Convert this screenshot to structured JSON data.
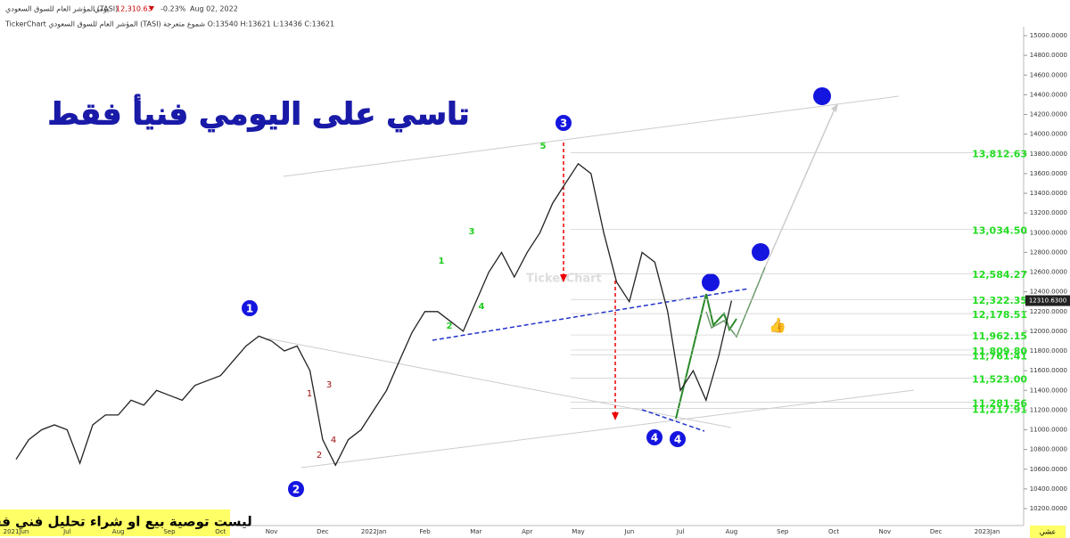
{
  "header": {
    "symbol": "المؤشر العام للسوق السعودي (TASI)",
    "period": "يومي",
    "price": "12,310.63",
    "change": "-0.23%",
    "date": "Aug 02, 2022",
    "info": "TickerChart المؤشر العام للسوق السعودي (TASI) شموع متعرجة O:13540 H:13621 L:13436 C:13621"
  },
  "chart_data": {
    "type": "line",
    "title": "تاسي على اليومي فنيأ فقط",
    "note": "ليست توصية بيع او شراء تحليل فني فقط",
    "watermark": "TickerChart",
    "corner_label": "عشي",
    "categories": [
      "2021Jun",
      null,
      null,
      null,
      "Jul",
      null,
      null,
      null,
      "Aug",
      null,
      null,
      null,
      "Sep",
      null,
      null,
      null,
      "Oct",
      null,
      null,
      null,
      "Nov",
      null,
      null,
      null,
      "Dec",
      null,
      null,
      null,
      "2022Jan",
      null,
      null,
      null,
      "Feb",
      null,
      null,
      null,
      "Mar",
      null,
      null,
      null,
      "Apr",
      null,
      null,
      null,
      "May",
      null,
      null,
      null,
      "Jun",
      null,
      null,
      null,
      "Jul",
      null,
      null,
      null,
      "Aug",
      null,
      null,
      null,
      "Sep",
      null,
      null,
      null,
      "Oct",
      null,
      null,
      null,
      "Nov",
      null,
      null,
      null,
      "Dec",
      null,
      null,
      null,
      "2023Jan"
    ],
    "series": [
      {
        "name": "TASI",
        "color": "#222222",
        "values": [
          10700,
          10900,
          11000,
          11050,
          11000,
          10660,
          11050,
          11150,
          11150,
          11300,
          11250,
          11400,
          11350,
          11300,
          11450,
          11500,
          11550,
          11700,
          11850,
          11950,
          11900,
          11800,
          11850,
          11600,
          10900,
          10640,
          10900,
          11000,
          11200,
          11400,
          11700,
          11990,
          12200,
          12200,
          12100,
          12000,
          12300,
          12600,
          12800,
          12550,
          12800,
          13000,
          13300,
          13500,
          13700,
          13600,
          13000,
          12500,
          12300,
          12800,
          12700,
          12200,
          11400,
          11600,
          11300,
          11750,
          12310.63,
          null,
          null,
          null,
          null,
          null,
          null,
          null,
          null,
          null,
          null,
          null,
          null,
          null,
          null,
          null,
          null,
          null,
          null,
          null,
          null
        ]
      }
    ],
    "ylim": [
      10100,
      15100
    ],
    "yticks": [
      {
        "value": 10200,
        "label": "10200.0000"
      },
      {
        "value": 10400,
        "label": "10400.0000"
      },
      {
        "value": 10600,
        "label": "10600.0000"
      },
      {
        "value": 10800,
        "label": "10800.0000"
      },
      {
        "value": 11000,
        "label": "11000.0000"
      },
      {
        "value": 11200,
        "label": "11200.0000"
      },
      {
        "value": 11400,
        "label": "11400.0000"
      },
      {
        "value": 11600,
        "label": "11600.0000"
      },
      {
        "value": 11800,
        "label": "11800.0000"
      },
      {
        "value": 12000,
        "label": "12000.0000"
      },
      {
        "value": 12200,
        "label": "12200.0000"
      },
      {
        "value": 12400,
        "label": "12400.0000"
      },
      {
        "value": 12600,
        "label": "12600.0000"
      },
      {
        "value": 12800,
        "label": "12800.0000"
      },
      {
        "value": 13000,
        "label": "13000.0000"
      },
      {
        "value": 13200,
        "label": "13200.0000"
      },
      {
        "value": 13400,
        "label": "13400.0000"
      },
      {
        "value": 13600,
        "label": "13600.0000"
      },
      {
        "value": 13800,
        "label": "13800.0000"
      },
      {
        "value": 14000,
        "label": "14000.0000"
      },
      {
        "value": 14200,
        "label": "14200.0000"
      },
      {
        "value": 14400,
        "label": "14400.0000"
      },
      {
        "value": 14600,
        "label": "14600.0000"
      },
      {
        "value": 14800,
        "label": "14800.0000"
      },
      {
        "value": 15000,
        "label": "15000.0000"
      }
    ],
    "last_price": {
      "value": 12310.63,
      "label": "12310.6300"
    },
    "levels": [
      {
        "value": 13812.63,
        "label": "13,812.63"
      },
      {
        "value": 13034.5,
        "label": "13,034.50"
      },
      {
        "value": 12584.27,
        "label": "12,584.27"
      },
      {
        "value": 12322.35,
        "label": "12,322.35"
      },
      {
        "value": 12178.51,
        "label": "12,178.51"
      },
      {
        "value": 11962.15,
        "label": "11,962.15"
      },
      {
        "value": 11809.8,
        "label": "11,809.80"
      },
      {
        "value": 11761.41,
        "label": "11,761.41"
      },
      {
        "value": 11523,
        "label": "11,523.00"
      },
      {
        "value": 11281.56,
        "label": "11,281.56"
      },
      {
        "value": 11217.91,
        "label": "11,217.91"
      }
    ],
    "level_color": "#22dd22",
    "wave_labels_major": [
      "1",
      "2",
      "3",
      "4",
      "4"
    ],
    "wave_labels_red": [
      "1",
      "3",
      "2",
      "4"
    ],
    "wave_labels_green": [
      "1",
      "3",
      "4",
      "2",
      "5"
    ]
  }
}
